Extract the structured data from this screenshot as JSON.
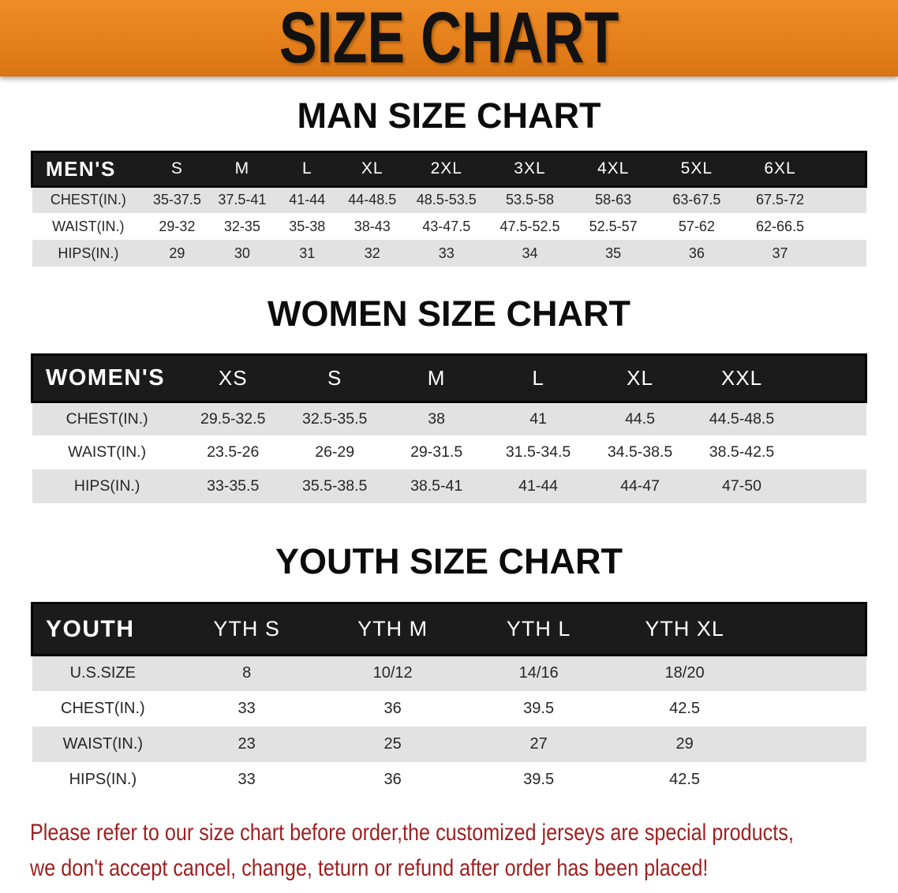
{
  "banner": {
    "title": "SIZE CHART"
  },
  "colors": {
    "banner_bg": "#E5801C",
    "banner_text": "#121212",
    "header_bar": "#1B1B1B",
    "header_text": "#FFFFFF",
    "row_alt": "#E2E2E2",
    "row_white": "#FFFFFF",
    "body_text": "#262626",
    "disclaimer_text": "#9E2020"
  },
  "sections": [
    {
      "heading": "MAN SIZE CHART",
      "table": {
        "header_label": "MEN'S",
        "columns": [
          "S",
          "M",
          "L",
          "XL",
          "2XL",
          "3XL",
          "4XL",
          "5XL",
          "6XL"
        ],
        "rows": [
          {
            "label": "CHEST(IN.)",
            "values": [
              "35-37.5",
              "37.5-41",
              "41-44",
              "44-48.5",
              "48.5-53.5",
              "53.5-58",
              "58-63",
              "63-67.5",
              "67.5-72"
            ]
          },
          {
            "label": "WAIST(IN.)",
            "values": [
              "29-32",
              "32-35",
              "35-38",
              "38-43",
              "43-47.5",
              "47.5-52.5",
              "52.5-57",
              "57-62",
              "62-66.5"
            ]
          },
          {
            "label": "HIPS(IN.)",
            "values": [
              "29",
              "30",
              "31",
              "32",
              "33",
              "34",
              "35",
              "36",
              "37"
            ]
          }
        ]
      }
    },
    {
      "heading": "WOMEN SIZE CHART",
      "table": {
        "header_label": "WOMEN'S",
        "columns": [
          "XS",
          "S",
          "M",
          "L",
          "XL",
          "XXL"
        ],
        "rows": [
          {
            "label": "CHEST(IN.)",
            "values": [
              "29.5-32.5",
              "32.5-35.5",
              "38",
              "41",
              "44.5",
              "44.5-48.5"
            ]
          },
          {
            "label": "WAIST(IN.)",
            "values": [
              "23.5-26",
              "26-29",
              "29-31.5",
              "31.5-34.5",
              "34.5-38.5",
              "38.5-42.5"
            ]
          },
          {
            "label": "HIPS(IN.)",
            "values": [
              "33-35.5",
              "35.5-38.5",
              "38.5-41",
              "41-44",
              "44-47",
              "47-50"
            ]
          }
        ]
      }
    },
    {
      "heading": "YOUTH SIZE CHART",
      "table": {
        "header_label": "YOUTH",
        "columns": [
          "YTH S",
          "YTH M",
          "YTH L",
          "YTH XL"
        ],
        "rows": [
          {
            "label": "U.S.SIZE",
            "values": [
              "8",
              "10/12",
              "14/16",
              "18/20"
            ]
          },
          {
            "label": "CHEST(IN.)",
            "values": [
              "33",
              "36",
              "39.5",
              "42.5"
            ]
          },
          {
            "label": "WAIST(IN.)",
            "values": [
              "23",
              "25",
              "27",
              "29"
            ]
          },
          {
            "label": "HIPS(IN.)",
            "values": [
              "33",
              "36",
              "39.5",
              "42.5"
            ]
          }
        ]
      }
    }
  ],
  "disclaimer": {
    "line1": "Please refer to our size chart before order,the customized jerseys are special products,",
    "line2": "we don't accept cancel, change, teturn or refund after order has been placed!"
  }
}
